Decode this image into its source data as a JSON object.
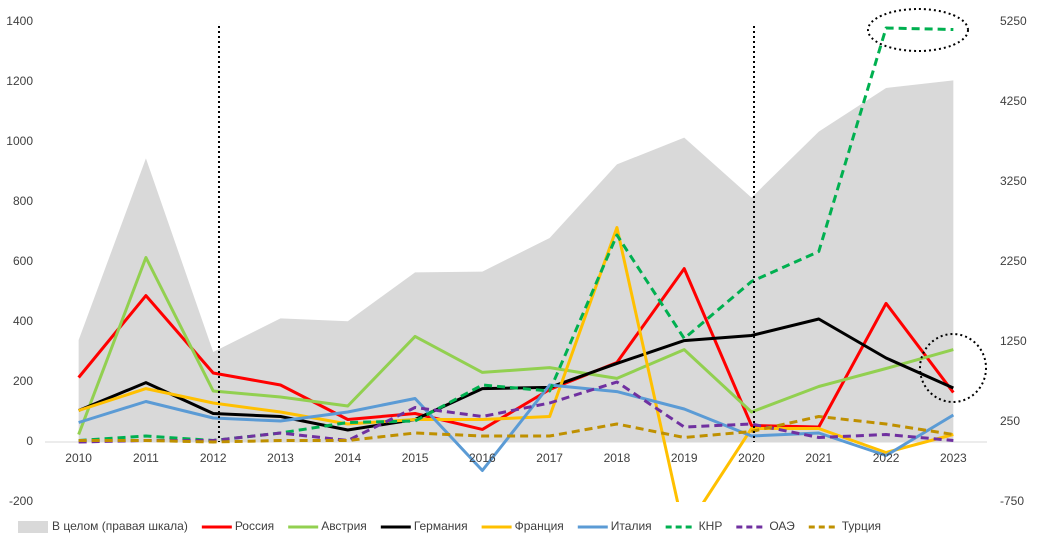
{
  "chart_data": {
    "type": "line",
    "categories": [
      "2010",
      "2011",
      "2012",
      "2013",
      "2014",
      "2015",
      "2016",
      "2017",
      "2018",
      "2019",
      "2020",
      "2021",
      "2022",
      "2023"
    ],
    "ylim": [
      -200,
      1400
    ],
    "yticks": [
      -200,
      0,
      200,
      400,
      600,
      800,
      1000,
      1200,
      1400
    ],
    "y2lim": [
      -750,
      5250
    ],
    "y2ticks": [
      -750,
      250,
      1250,
      2250,
      3250,
      4250,
      5250
    ],
    "legend": "bottom",
    "series": [
      {
        "name": "В целом (правая шкала)",
        "type": "area",
        "axis": "y2",
        "color": "#d9d9d9",
        "values": [
          1275,
          3545,
          1125,
          1545,
          1510,
          2120,
          2130,
          2550,
          3470,
          3805,
          3055,
          3880,
          4425,
          4520
        ]
      },
      {
        "name": "Россия",
        "color": "#ff0000",
        "values": [
          215,
          488,
          230,
          190,
          75,
          95,
          42,
          175,
          265,
          578,
          55,
          50,
          462,
          165
        ]
      },
      {
        "name": "Австрия",
        "color": "#92d050",
        "values": [
          25,
          615,
          170,
          150,
          120,
          352,
          232,
          248,
          212,
          308,
          100,
          185,
          245,
          308
        ]
      },
      {
        "name": "Германия",
        "color": "#000000",
        "values": [
          105,
          198,
          95,
          85,
          40,
          75,
          178,
          182,
          262,
          338,
          355,
          410,
          280,
          180
        ]
      },
      {
        "name": "Франция",
        "color": "#ffc000",
        "values": [
          105,
          178,
          130,
          100,
          60,
          75,
          75,
          85,
          715,
          -300,
          45,
          45,
          -35,
          25
        ]
      },
      {
        "name": "Италия",
        "color": "#5b9bd5",
        "values": [
          65,
          135,
          80,
          70,
          100,
          145,
          -95,
          190,
          168,
          110,
          20,
          30,
          -45,
          90
        ]
      },
      {
        "name": "КНР",
        "color": "#00b050",
        "dashed": true,
        "values": [
          5,
          20,
          5,
          30,
          65,
          70,
          190,
          170,
          690,
          345,
          535,
          635,
          1380,
          1375
        ]
      },
      {
        "name": "ОАЭ",
        "color": "#7030a0",
        "dashed": true,
        "values": [
          0,
          5,
          5,
          30,
          5,
          115,
          85,
          130,
          200,
          50,
          60,
          15,
          25,
          5
        ]
      },
      {
        "name": "Турция",
        "color": "#bf9000",
        "dashed": true,
        "values": [
          5,
          5,
          0,
          5,
          5,
          30,
          20,
          20,
          60,
          15,
          35,
          85,
          60,
          25
        ]
      }
    ]
  }
}
